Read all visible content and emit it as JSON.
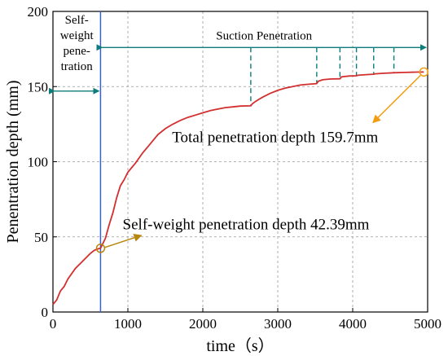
{
  "chart_data": {
    "type": "line",
    "xlabel": "time（s）",
    "ylabel": "Penentration depth (mm)",
    "xlim": [
      0,
      5000
    ],
    "ylim": [
      0,
      200
    ],
    "xticks": [
      0,
      1000,
      2000,
      3000,
      4000,
      5000
    ],
    "yticks": [
      0,
      50,
      100,
      150,
      200
    ],
    "grid": true,
    "series": [
      {
        "color": "#d32f2f",
        "x": [
          0,
          50,
          100,
          150,
          200,
          300,
          400,
          500,
          550,
          600,
          635,
          700,
          750,
          800,
          850,
          900,
          950,
          1000,
          1100,
          1200,
          1300,
          1400,
          1500,
          1600,
          1700,
          1800,
          1900,
          2000,
          2100,
          2200,
          2300,
          2400,
          2500,
          2640,
          2660,
          2700,
          2750,
          2800,
          2900,
          3000,
          3100,
          3200,
          3300,
          3400,
          3520,
          3540,
          3600,
          3700,
          3830,
          3850,
          3950,
          4050,
          4070,
          4200,
          4280,
          4300,
          4400,
          4550,
          4700,
          4850,
          4950
        ],
        "y": [
          5,
          8,
          14,
          17,
          22,
          29,
          34,
          39,
          41,
          42,
          42.4,
          49,
          58,
          66,
          76,
          84,
          88,
          93,
          99,
          106,
          112,
          118,
          122,
          125,
          127.5,
          129.5,
          131,
          132.5,
          134,
          135,
          136,
          136.5,
          137,
          137.2,
          138.5,
          140,
          141.5,
          143,
          145.5,
          147.5,
          149,
          150,
          151,
          151.5,
          152,
          153.5,
          154.5,
          155,
          155.2,
          156.5,
          157,
          157.2,
          157.5,
          158,
          158.2,
          158.5,
          158.8,
          159.2,
          159.4,
          159.6,
          159.7
        ]
      }
    ],
    "phases": {
      "self_weight": "Self-\nweight\npene-\ntration",
      "suction": "Suction Penetration",
      "boundary_x": 635,
      "arrow_y": 176,
      "left_arrow_y": 147
    },
    "stage_markers_x": [
      2640,
      3520,
      3830,
      4050,
      4280,
      4550
    ],
    "marker_line_top_y": 176,
    "annotations": [
      {
        "text": "Total penetration depth 159.7mm",
        "point": [
          4950,
          159.7
        ],
        "color": "#f39c12"
      },
      {
        "text": "Self-weight penetration depth 42.39mm",
        "point": [
          635,
          42.39
        ],
        "color": "#b8860b"
      }
    ]
  },
  "colors": {
    "teal": "#0e7c7b",
    "grid": "#999999",
    "boundary": "#3a5fcd"
  }
}
